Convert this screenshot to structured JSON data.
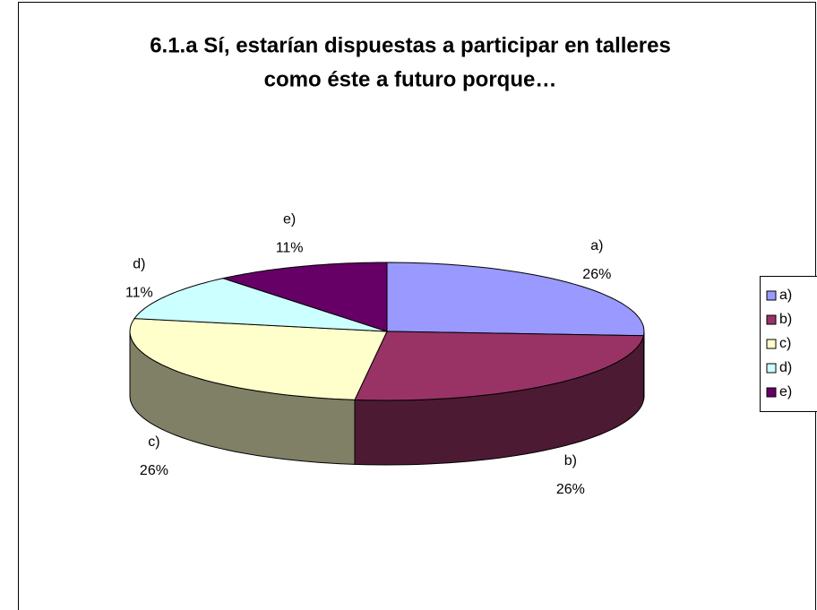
{
  "chart_data": {
    "type": "pie3d",
    "title": [
      "6.1.a Sí, estarían dispuestas a participar en talleres",
      "como éste a futuro porque…"
    ],
    "categories": [
      "a)",
      "b)",
      "c)",
      "d)",
      "e)"
    ],
    "values": [
      26,
      26,
      26,
      11,
      11
    ],
    "value_labels": [
      "26%",
      "26%",
      "26%",
      "11%",
      "11%"
    ],
    "colors": [
      "#9999ff",
      "#993366",
      "#ffffcc",
      "#ccffff",
      "#660066"
    ],
    "legend": "right"
  }
}
